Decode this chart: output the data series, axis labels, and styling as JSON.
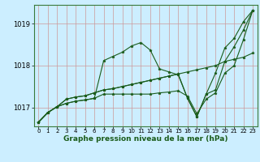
{
  "xlabel": "Graphe pression niveau de la mer (hPa)",
  "background_color": "#cceeff",
  "plot_bg_color": "#cceeff",
  "grid_color": "#cc9999",
  "line_color": "#1a5c1a",
  "marker": "*",
  "ylim": [
    1016.55,
    1019.45
  ],
  "xlim": [
    -0.5,
    23.5
  ],
  "yticks": [
    1017,
    1018,
    1019
  ],
  "xticks": [
    0,
    1,
    2,
    3,
    4,
    5,
    6,
    7,
    8,
    9,
    10,
    11,
    12,
    13,
    14,
    15,
    16,
    17,
    18,
    19,
    20,
    21,
    22,
    23
  ],
  "lines": [
    [
      1016.65,
      1016.88,
      1017.02,
      1017.1,
      1017.15,
      1017.18,
      1017.22,
      1017.32,
      1017.32,
      1017.32,
      1017.32,
      1017.32,
      1017.32,
      1017.35,
      1017.37,
      1017.4,
      1017.27,
      1016.85,
      1017.2,
      1017.35,
      1017.82,
      1018.0,
      1018.62,
      1019.32
    ],
    [
      1016.65,
      1016.88,
      1017.02,
      1017.1,
      1017.15,
      1017.18,
      1017.22,
      1018.12,
      1018.22,
      1018.32,
      1018.47,
      1018.55,
      1018.37,
      1017.92,
      1017.85,
      1017.78,
      1017.22,
      1016.78,
      1017.32,
      1017.82,
      1018.42,
      1018.65,
      1019.05,
      1019.32
    ],
    [
      1016.65,
      1016.88,
      1017.02,
      1017.2,
      1017.25,
      1017.28,
      1017.35,
      1017.42,
      1017.45,
      1017.5,
      1017.55,
      1017.6,
      1017.65,
      1017.7,
      1017.75,
      1017.8,
      1017.22,
      1016.78,
      1017.32,
      1017.42,
      1018.1,
      1018.45,
      1018.85,
      1019.32
    ],
    [
      1016.65,
      1016.88,
      1017.02,
      1017.2,
      1017.25,
      1017.28,
      1017.35,
      1017.42,
      1017.45,
      1017.5,
      1017.55,
      1017.6,
      1017.65,
      1017.7,
      1017.75,
      1017.8,
      1017.85,
      1017.9,
      1017.95,
      1018.0,
      1018.1,
      1018.15,
      1018.2,
      1018.3
    ]
  ]
}
